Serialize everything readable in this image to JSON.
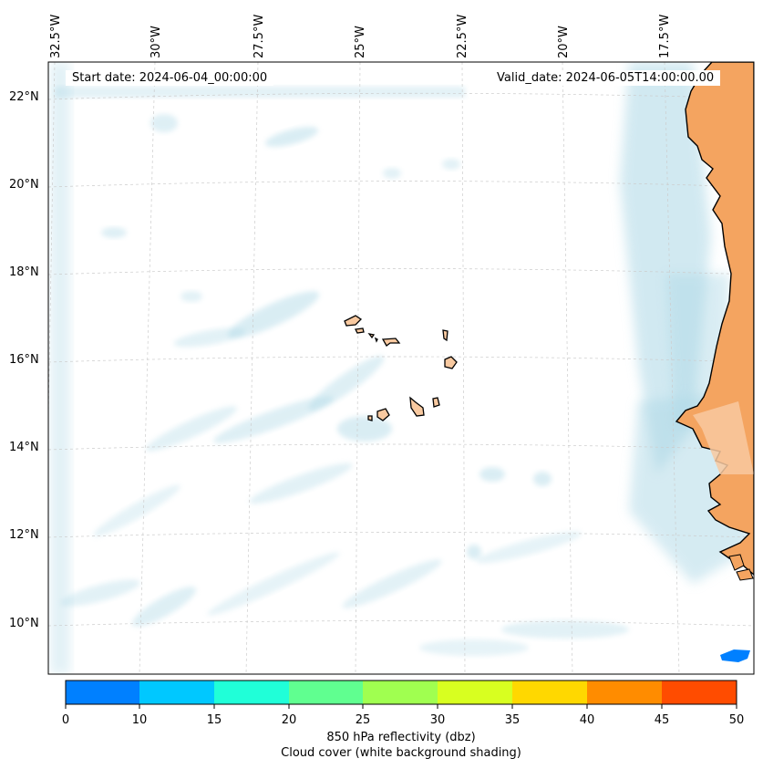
{
  "map": {
    "start_date_label": "Start date: 2024-06-04_00:00:00",
    "valid_date_label": "Valid_date: 2024-06-05T14:00:00.00",
    "lon_labels": [
      "32.5°W",
      "30°W",
      "27.5°W",
      "25°W",
      "22.5°W",
      "20°W",
      "17.5°W"
    ],
    "lat_labels": [
      "22°N",
      "20°N",
      "18°N",
      "16°N",
      "14°N",
      "12°N",
      "10°N"
    ],
    "land_color": "#f4a460",
    "cloud_color": "#add8e6"
  },
  "colorbar": {
    "ticks": [
      "0",
      "10",
      "15",
      "20",
      "25",
      "30",
      "35",
      "40",
      "45",
      "50"
    ],
    "colors": [
      "#0080ff",
      "#00c8ff",
      "#20ffd8",
      "#60ff90",
      "#a0ff50",
      "#d8ff20",
      "#ffd800",
      "#ff8c00",
      "#ff4c00"
    ],
    "label": "850 hPa reflectivity (dbz)",
    "sublabel": "Cloud cover (white background shading)"
  }
}
